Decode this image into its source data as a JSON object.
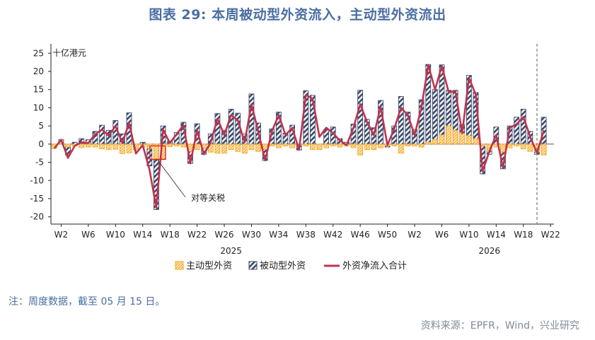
{
  "header": {
    "title": "图表 29: 本周被动型外资流入，主动型外资流出"
  },
  "footer": {
    "note": "注：周度数据，截至 05 月 15 日。",
    "source": "资料来源：EPFR，Wind，兴业研究"
  },
  "colors": {
    "active": "#f5a623",
    "passive": "#3b4a6b",
    "net": "#c0334d",
    "title": "#4a6ea3"
  },
  "chart_data": {
    "type": "bar",
    "unit_label": "十亿港元",
    "annotation": "对等关税",
    "ylim": [
      -22,
      27
    ],
    "yticks": [
      25,
      20,
      15,
      10,
      5,
      0,
      -5,
      -10,
      -15,
      -20
    ],
    "x_tick_labels": [
      {
        "i": 1,
        "label": "W2"
      },
      {
        "i": 5,
        "label": "W6"
      },
      {
        "i": 9,
        "label": "W10"
      },
      {
        "i": 13,
        "label": "W14"
      },
      {
        "i": 17,
        "label": "W18"
      },
      {
        "i": 21,
        "label": "W22"
      },
      {
        "i": 25,
        "label": "W26"
      },
      {
        "i": 29,
        "label": "W30"
      },
      {
        "i": 33,
        "label": "W34"
      },
      {
        "i": 37,
        "label": "W38"
      },
      {
        "i": 41,
        "label": "W42"
      },
      {
        "i": 45,
        "label": "W46"
      },
      {
        "i": 49,
        "label": "W50"
      },
      {
        "i": 53,
        "label": "W2"
      },
      {
        "i": 57,
        "label": "W6"
      },
      {
        "i": 61,
        "label": "W10"
      },
      {
        "i": 65,
        "label": "W14"
      },
      {
        "i": 69,
        "label": "W18"
      },
      {
        "i": 73,
        "label": "W22"
      }
    ],
    "year_labels": [
      {
        "i": 26,
        "label": "2025"
      },
      {
        "i": 64,
        "label": "2026"
      }
    ],
    "legend": [
      "主动型外资",
      "被动型外资",
      "外资净流入合计"
    ],
    "n_slots": 74,
    "divider_after": 71,
    "series": [
      {
        "name": "主动型外资",
        "values": [
          -1.2,
          0.2,
          -0.8,
          -0.5,
          -1.0,
          -0.8,
          -0.8,
          -1.3,
          -1.5,
          -1.4,
          -2.6,
          -2.4,
          -1.6,
          -0.8,
          -1.2,
          -4.0,
          -4.0,
          -0.7,
          -0.5,
          -0.8,
          -2.0,
          -1.5,
          -1.2,
          -2.2,
          -2.5,
          -2.5,
          -1.5,
          -2.0,
          -2.5,
          -1.5,
          -2.0,
          -1.5,
          -0.5,
          -1.0,
          -0.5,
          -1.0,
          -0.3,
          -0.5,
          -1.5,
          -1.5,
          -1.0,
          -0.5,
          -0.8,
          -0.5,
          -1.0,
          -3.0,
          -1.5,
          -1.5,
          -1.0,
          -0.5,
          -0.5,
          -2.5,
          -0.5,
          -0.5,
          -0.8,
          0.5,
          1.3,
          2.5,
          5.0,
          3.8,
          3.0,
          2.3,
          1.5,
          -0.5,
          -1.8,
          -0.8,
          -2.2,
          -1.0,
          -0.5,
          -1.3,
          -2.0,
          -2.2,
          -3.0
        ],
        "active_len": 73
      },
      {
        "name": "被动型外资",
        "values": [
          -0.3,
          1.2,
          -3.0,
          0.5,
          1.5,
          1.2,
          3.5,
          5.2,
          3.8,
          6.5,
          2.8,
          8.6,
          -1.0,
          0.5,
          -6.0,
          -18.0,
          5.0,
          0.8,
          3.2,
          6.0,
          -5.3,
          5.6,
          -2.8,
          2.8,
          8.4,
          3.8,
          9.6,
          8.5,
          2.8,
          13.8,
          5.8,
          -4.5,
          4.2,
          8.8,
          3.0,
          5.2,
          -1.6,
          14.7,
          13.4,
          -1.2,
          4.0,
          4.7,
          1.5,
          0.5,
          5.5,
          14.8,
          6.8,
          4.5,
          12.0,
          -0.8,
          5.0,
          13.1,
          8.8,
          4.0,
          12.2,
          21.9,
          15.0,
          21.8,
          14.8,
          14.8,
          5.4,
          18.9,
          14.2,
          -8.2,
          -2.8,
          4.7,
          -6.8,
          5.0,
          7.4,
          9.6,
          3.5,
          -2.8,
          7.4
        ]
      },
      {
        "name": "外资净流入合计",
        "values": [
          -1.2,
          1.2,
          -3.8,
          -0.5,
          0.5,
          0.3,
          2.7,
          4.0,
          2.3,
          5.0,
          0.3,
          5.9,
          -2.6,
          -0.3,
          -7.0,
          -17.5,
          4.0,
          0.3,
          2.8,
          5.2,
          -5.3,
          3.8,
          -2.8,
          0.5,
          7.0,
          2.5,
          8.0,
          6.5,
          0.5,
          11.0,
          3.5,
          -4.5,
          3.5,
          8.0,
          2.5,
          4.5,
          -1.6,
          13.5,
          12.5,
          2.0,
          4.5,
          3.0,
          1.0,
          -0.3,
          4.5,
          11.0,
          6.0,
          2.5,
          10.3,
          -0.3,
          4.2,
          10.0,
          8.0,
          2.5,
          10.0,
          21.8,
          15.0,
          21.5,
          14.3,
          14.5,
          3.0,
          18.3,
          13.5,
          -7.5,
          -2.0,
          2.5,
          -6.5,
          4.5,
          5.5,
          7.5,
          2.0,
          -2.5,
          3.8
        ]
      }
    ]
  }
}
